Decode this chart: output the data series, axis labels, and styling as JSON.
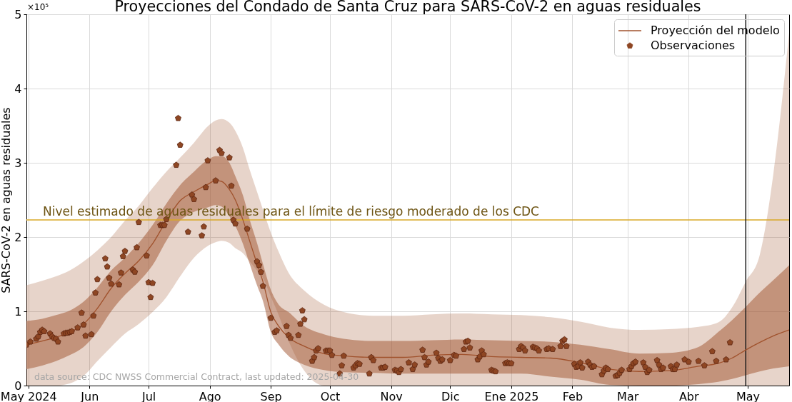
{
  "chart_data": {
    "type": "line",
    "title": "Proyecciones del Condado de Santa Cruz para SARS-CoV-2 en aguas residuales",
    "ylabel": "SARS-CoV-2 en aguas residuales",
    "xlim": [
      "2024-04-30",
      "2025-05-22"
    ],
    "xticks": [
      {
        "value": "2024-05-01",
        "label": "May 2024"
      },
      {
        "value": "2024-06-01",
        "label": "Jun"
      },
      {
        "value": "2024-07-01",
        "label": "Jul"
      },
      {
        "value": "2024-08-01",
        "label": "Ago"
      },
      {
        "value": "2024-09-01",
        "label": "Sep"
      },
      {
        "value": "2024-10-01",
        "label": "Oct"
      },
      {
        "value": "2024-11-01",
        "label": "Nov"
      },
      {
        "value": "2024-12-01",
        "label": "Dic"
      },
      {
        "value": "2025-01-01",
        "label": "Ene 2025"
      },
      {
        "value": "2025-02-01",
        "label": "Feb"
      },
      {
        "value": "2025-03-01",
        "label": "Mar"
      },
      {
        "value": "2025-04-01",
        "label": "Abr"
      },
      {
        "value": "2025-05-01",
        "label": "May"
      }
    ],
    "ylim": [
      0,
      5
    ],
    "yticks": [
      0,
      1,
      2,
      3,
      4,
      5
    ],
    "grid": true,
    "legend": "top right",
    "series": [
      {
        "type": "line",
        "name": "Proyección del modelo",
        "color": "#a0522d",
        "x": [
          "2024-04-30",
          "2024-05-08",
          "2024-05-15",
          "2024-05-22",
          "2024-05-29",
          "2024-06-05",
          "2024-06-12",
          "2024-06-19",
          "2024-06-26",
          "2024-07-03",
          "2024-07-10",
          "2024-07-17",
          "2024-07-24",
          "2024-07-31",
          "2024-08-04",
          "2024-08-07",
          "2024-08-11",
          "2024-08-14",
          "2024-08-18",
          "2024-08-21",
          "2024-08-25",
          "2024-08-28",
          "2024-09-01",
          "2024-09-05",
          "2024-09-10",
          "2024-09-18",
          "2024-09-28",
          "2024-10-08",
          "2024-10-23",
          "2024-11-07",
          "2024-11-22",
          "2024-12-07",
          "2024-12-22",
          "2025-01-06",
          "2025-01-21",
          "2025-02-05",
          "2025-02-20",
          "2025-03-07",
          "2025-03-22",
          "2025-04-06",
          "2025-04-16",
          "2025-04-23",
          "2025-04-30",
          "2025-05-07",
          "2025-05-14",
          "2025-05-22"
        ],
        "values": [
          0.55,
          0.6,
          0.65,
          0.72,
          0.83,
          1.04,
          1.31,
          1.51,
          1.68,
          1.91,
          2.22,
          2.49,
          2.61,
          2.71,
          2.76,
          2.75,
          2.64,
          2.5,
          2.22,
          1.97,
          1.64,
          1.4,
          0.99,
          0.8,
          0.65,
          0.53,
          0.43,
          0.4,
          0.38,
          0.38,
          0.41,
          0.42,
          0.39,
          0.38,
          0.37,
          0.31,
          0.22,
          0.19,
          0.2,
          0.26,
          0.3,
          0.37,
          0.48,
          0.58,
          0.67,
          0.75
        ],
        "lower": [
          0.22,
          0.27,
          0.33,
          0.41,
          0.52,
          0.72,
          1,
          1.22,
          1.4,
          1.62,
          1.95,
          2.22,
          2.34,
          2.4,
          2.43,
          2.41,
          2.28,
          2.15,
          1.9,
          1.66,
          1.35,
          1.14,
          0.72,
          0.55,
          0.4,
          0.28,
          0.21,
          0.18,
          0.17,
          0.16,
          0.16,
          0.16,
          0.16,
          0.16,
          0.12,
          0.08,
          0.01,
          0,
          0,
          0.02,
          0.05,
          0.09,
          0.14,
          0.19,
          0.23,
          0.26
        ],
        "upper": [
          0.87,
          0.9,
          0.95,
          1.01,
          1.13,
          1.32,
          1.55,
          1.72,
          1.92,
          2.16,
          2.45,
          2.7,
          2.88,
          3.04,
          3.09,
          3.09,
          3,
          2.82,
          2.55,
          2.26,
          1.92,
          1.64,
          1.29,
          1.09,
          0.99,
          0.8,
          0.69,
          0.63,
          0.6,
          0.6,
          0.61,
          0.62,
          0.61,
          0.6,
          0.59,
          0.55,
          0.49,
          0.43,
          0.44,
          0.52,
          0.72,
          0.88,
          1.06,
          1.25,
          1.42,
          1.62
        ]
      },
      {
        "type": "line",
        "color": "#a0522d",
        "x": [
          "2024-04-30",
          "2024-05-08",
          "2024-05-15",
          "2024-05-22",
          "2024-05-29",
          "2024-06-05",
          "2024-06-12",
          "2024-06-19",
          "2024-06-26",
          "2024-07-03",
          "2024-07-10",
          "2024-07-17",
          "2024-07-24",
          "2024-07-31",
          "2024-08-04",
          "2024-08-07",
          "2024-08-11",
          "2024-08-14",
          "2024-08-18",
          "2024-08-21",
          "2024-08-25",
          "2024-08-28",
          "2024-09-01",
          "2024-09-05",
          "2024-09-10",
          "2024-09-18",
          "2024-09-28",
          "2024-10-08",
          "2024-10-23",
          "2024-11-07",
          "2024-11-22",
          "2024-12-07",
          "2024-12-22",
          "2025-01-06",
          "2025-01-21",
          "2025-02-05",
          "2025-02-20",
          "2025-03-07",
          "2025-03-22",
          "2025-04-06",
          "2025-04-16",
          "2025-04-23",
          "2025-04-30",
          "2025-05-07",
          "2025-05-14",
          "2025-05-22"
        ],
        "values": [
          null,
          null,
          null,
          null,
          null,
          null,
          null,
          null,
          null,
          null,
          null,
          null,
          null,
          null,
          null,
          null,
          null,
          null,
          null,
          null,
          null,
          null,
          null,
          null,
          null,
          null,
          null,
          null,
          null,
          null,
          null,
          null,
          null,
          null,
          null,
          null,
          null,
          null,
          null,
          null,
          null,
          null,
          null,
          null,
          null,
          null
        ],
        "lower": [
          0,
          0,
          0,
          0.03,
          0.13,
          0.33,
          0.52,
          0.7,
          0.83,
          0.99,
          1.19,
          1.47,
          1.72,
          1.88,
          1.93,
          1.95,
          1.92,
          1.85,
          1.78,
          1.68,
          1.55,
          1.45,
          1.2,
          0.95,
          0.6,
          0.2,
          0,
          0,
          0,
          0,
          0,
          0,
          0,
          0,
          0,
          0,
          0,
          0,
          0,
          0,
          0,
          0,
          0,
          0,
          0,
          0
        ],
        "upper": [
          1.35,
          1.41,
          1.47,
          1.55,
          1.67,
          1.82,
          2,
          2.22,
          2.42,
          2.66,
          2.88,
          3.07,
          3.27,
          3.49,
          3.57,
          3.59,
          3.54,
          3.43,
          3.19,
          2.93,
          2.61,
          2.37,
          2.06,
          1.8,
          1.52,
          1.28,
          1.09,
          0.99,
          0.94,
          0.94,
          0.96,
          0.97,
          0.96,
          0.95,
          0.92,
          0.86,
          0.78,
          0.75,
          0.76,
          0.79,
          0.85,
          1.05,
          1.4,
          1.75,
          2.85,
          4.75
        ]
      },
      {
        "type": "scatter",
        "name": "Observaciones",
        "color": "#8e4623",
        "x": [
          "2024-04-30",
          "2024-05-02",
          "2024-05-05",
          "2024-05-06",
          "2024-05-07",
          "2024-05-08",
          "2024-05-09",
          "2024-05-12",
          "2024-05-13",
          "2024-05-14",
          "2024-05-15",
          "2024-05-16",
          "2024-05-19",
          "2024-05-20",
          "2024-05-21",
          "2024-05-22",
          "2024-05-23",
          "2024-05-26",
          "2024-05-28",
          "2024-05-29",
          "2024-05-30",
          "2024-06-02",
          "2024-06-03",
          "2024-06-04",
          "2024-06-05",
          "2024-06-09",
          "2024-06-10",
          "2024-06-11",
          "2024-06-12",
          "2024-06-16",
          "2024-06-17",
          "2024-06-18",
          "2024-06-19",
          "2024-06-23",
          "2024-06-24",
          "2024-06-25",
          "2024-06-26",
          "2024-06-30",
          "2024-07-01",
          "2024-07-02",
          "2024-07-03",
          "2024-07-07",
          "2024-07-08",
          "2024-07-09",
          "2024-07-10",
          "2024-07-15",
          "2024-07-16",
          "2024-07-17",
          "2024-07-21",
          "2024-07-23",
          "2024-07-24",
          "2024-07-28",
          "2024-07-29",
          "2024-07-30",
          "2024-07-31",
          "2024-08-04",
          "2024-08-06",
          "2024-08-07",
          "2024-08-11",
          "2024-08-12",
          "2024-08-13",
          "2024-08-14",
          "2024-08-20",
          "2024-08-25",
          "2024-08-26",
          "2024-08-27",
          "2024-08-28",
          "2024-09-01",
          "2024-09-03",
          "2024-09-04",
          "2024-09-09",
          "2024-09-10",
          "2024-09-11",
          "2024-09-15",
          "2024-09-16",
          "2024-09-17",
          "2024-09-18",
          "2024-09-22",
          "2024-09-23",
          "2024-09-24",
          "2024-09-25",
          "2024-09-29",
          "2024-09-30",
          "2024-10-01",
          "2024-10-02",
          "2024-10-06",
          "2024-10-07",
          "2024-10-08",
          "2024-10-13",
          "2024-10-14",
          "2024-10-15",
          "2024-10-16",
          "2024-10-21",
          "2024-10-22",
          "2024-10-23",
          "2024-10-27",
          "2024-10-28",
          "2024-10-29",
          "2024-11-03",
          "2024-11-04",
          "2024-11-05",
          "2024-11-06",
          "2024-11-10",
          "2024-11-12",
          "2024-11-13",
          "2024-11-17",
          "2024-11-18",
          "2024-11-19",
          "2024-11-20",
          "2024-11-24",
          "2024-11-25",
          "2024-11-26",
          "2024-11-27",
          "2024-12-01",
          "2024-12-03",
          "2024-12-04",
          "2024-12-08",
          "2024-12-09",
          "2024-12-10",
          "2024-12-11",
          "2024-12-15",
          "2024-12-16",
          "2024-12-17",
          "2024-12-18",
          "2024-12-22",
          "2024-12-23",
          "2024-12-24",
          "2024-12-29",
          "2024-12-30",
          "2024-12-31",
          "2025-01-01",
          "2025-01-05",
          "2025-01-06",
          "2025-01-07",
          "2025-01-08",
          "2025-01-12",
          "2025-01-13",
          "2025-01-14",
          "2025-01-15",
          "2025-01-19",
          "2025-01-20",
          "2025-01-22",
          "2025-01-26",
          "2025-01-27",
          "2025-01-28",
          "2025-01-29",
          "2025-02-02",
          "2025-02-03",
          "2025-02-04",
          "2025-02-05",
          "2025-02-06",
          "2025-02-09",
          "2025-02-10",
          "2025-02-11",
          "2025-02-12",
          "2025-02-16",
          "2025-02-17",
          "2025-02-18",
          "2025-02-19",
          "2025-02-23",
          "2025-02-24",
          "2025-02-25",
          "2025-02-26",
          "2025-03-02",
          "2025-03-03",
          "2025-03-04",
          "2025-03-05",
          "2025-03-09",
          "2025-03-10",
          "2025-03-11",
          "2025-03-12",
          "2025-03-16",
          "2025-03-17",
          "2025-03-18",
          "2025-03-19",
          "2025-03-23",
          "2025-03-24",
          "2025-03-25",
          "2025-03-26",
          "2025-03-30",
          "2025-04-01",
          "2025-04-06",
          "2025-04-09",
          "2025-04-13",
          "2025-04-15",
          "2025-04-20",
          "2025-04-22"
        ],
        "values": [
          0.55,
          0.59,
          0.63,
          0.66,
          0.72,
          0.75,
          0.73,
          0.7,
          0.66,
          0.64,
          0.63,
          0.59,
          0.7,
          0.71,
          0.71,
          0.72,
          0.73,
          0.78,
          0.98,
          0.82,
          0.67,
          0.69,
          0.94,
          1.25,
          1.43,
          1.71,
          1.6,
          1.45,
          1.37,
          1.36,
          1.52,
          1.74,
          1.81,
          1.56,
          1.53,
          1.86,
          2.2,
          1.75,
          1.39,
          1.19,
          1.38,
          2.16,
          2.16,
          2.16,
          2.24,
          2.97,
          3.6,
          3.24,
          2.07,
          2.57,
          2.51,
          2.02,
          2.14,
          2.67,
          3.03,
          2.76,
          3.17,
          3.13,
          3.07,
          2.69,
          2.23,
          2.18,
          2.11,
          1.67,
          1.62,
          1.53,
          1.34,
          0.91,
          0.72,
          0.74,
          0.8,
          0.68,
          0.64,
          0.68,
          0.83,
          1.01,
          0.89,
          0.33,
          0.38,
          0.47,
          0.5,
          0.47,
          0.47,
          0.47,
          0.41,
          0.16,
          0.27,
          0.4,
          0.24,
          0.27,
          0.3,
          0.29,
          0.16,
          0.38,
          0.34,
          0.24,
          0.24,
          0.25,
          0.21,
          0.2,
          0.18,
          0.22,
          0.31,
          0.22,
          0.28,
          0.48,
          0.38,
          0.28,
          0.32,
          0.44,
          0.37,
          0.33,
          0.35,
          0.34,
          0.41,
          0.4,
          0.49,
          0.59,
          0.6,
          0.51,
          0.35,
          0.39,
          0.47,
          0.42,
          0.21,
          0.2,
          0.19,
          0.3,
          0.31,
          0.3,
          0.3,
          0.49,
          0.53,
          0.51,
          0.47,
          0.52,
          0.51,
          0.5,
          0.47,
          0.49,
          0.5,
          0.49,
          0.53,
          0.6,
          0.62,
          0.53,
          0.29,
          0.25,
          0.26,
          0.31,
          0.24,
          0.32,
          0.28,
          0.25,
          0.26,
          0.15,
          0.2,
          0.24,
          0.22,
          0.13,
          0.14,
          0.17,
          0.21,
          0.22,
          0.26,
          0.3,
          0.32,
          0.31,
          0.25,
          0.18,
          0.21,
          0.34,
          0.28,
          0.22,
          0.24,
          0.26,
          0.22,
          0.22,
          0.28,
          0.35,
          0.32,
          0.33,
          0.27,
          0.46,
          0.33,
          0.35,
          0.58
        ]
      }
    ],
    "ref_lines": [
      {
        "axis": "y",
        "value": 2.23,
        "label": "Nivel estimado de aguas residuales para el límite de riesgo moderado de los CDC",
        "color": "#d9a826"
      },
      {
        "axis": "x",
        "value": "2025-04-30",
        "color": "#1a1a1a"
      }
    ],
    "annotations": [
      "×10⁵",
      "data source: CDC NWSS Commercial Contract, last updated: 2025-04-30"
    ]
  }
}
